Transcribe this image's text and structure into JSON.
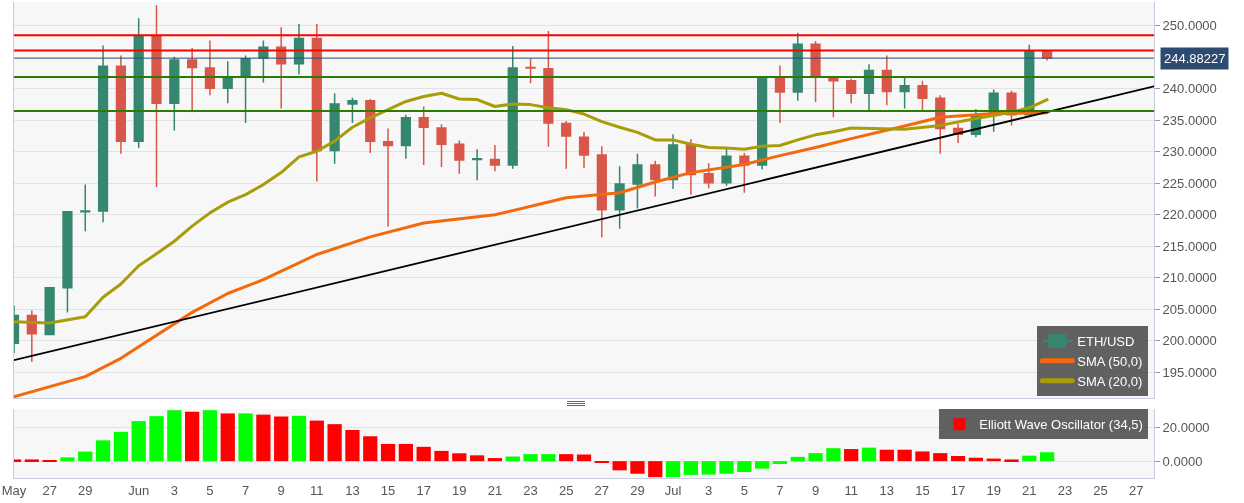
{
  "chart_data": [
    {
      "type": "candlestick",
      "tick_labels": "y",
      "grid": "y",
      "legend": "bottom right",
      "x": [
        "--05-25",
        "--05-26",
        "--05-27",
        "--05-28",
        "--05-29",
        "--05-30",
        "--05-31",
        "--06-01",
        "--06-02",
        "--06-03",
        "--06-04",
        "--06-05",
        "--06-06",
        "--06-07",
        "--06-08",
        "--06-09",
        "--06-10",
        "--06-11",
        "--06-12",
        "--06-13",
        "--06-14",
        "--06-15",
        "--06-16",
        "--06-17",
        "--06-18",
        "--06-19",
        "--06-20",
        "--06-21",
        "--06-22",
        "--06-23",
        "--06-24",
        "--06-25",
        "--06-26",
        "--06-27",
        "--06-28",
        "--06-29",
        "--06-30",
        "--07-01",
        "--07-02",
        "--07-03",
        "--07-04",
        "--07-05",
        "--07-06",
        "--07-07",
        "--07-08",
        "--07-09",
        "--07-10",
        "--07-11",
        "--07-12",
        "--07-13",
        "--07-14",
        "--07-15",
        "--07-16",
        "--07-17",
        "--07-18",
        "--07-19",
        "--07-20",
        "--07-21",
        "--07-22"
      ],
      "xlim": [
        "--05-25",
        "--07-28"
      ],
      "ylim": [
        190.9,
        253.8
      ],
      "yticks": [
        {
          "value": 195,
          "label": "195.0000"
        },
        {
          "value": 200,
          "label": "200.0000"
        },
        {
          "value": 205,
          "label": "205.0000"
        },
        {
          "value": 210,
          "label": "210.0000"
        },
        {
          "value": 215,
          "label": "215.0000"
        },
        {
          "value": 220,
          "label": "220.0000"
        },
        {
          "value": 225,
          "label": "225.0000"
        },
        {
          "value": 230,
          "label": "230.0000"
        },
        {
          "value": 235,
          "label": "235.0000"
        },
        {
          "value": 240,
          "label": "240.0000"
        },
        {
          "value": 250,
          "label": "250.0000"
        }
      ],
      "series": [
        {
          "name": "ETH/USD",
          "ohlc": [
            [
              199.6,
              205.6,
              198.0,
              204.0
            ],
            [
              204.0,
              204.8,
              196.6,
              201.1
            ],
            [
              201.0,
              208.4,
              201.0,
              208.4
            ],
            [
              208.4,
              220.5,
              204.5,
              220.5
            ],
            [
              220.5,
              224.8,
              217.4,
              220.6
            ],
            [
              220.6,
              246.9,
              218.8,
              243.6
            ],
            [
              243.6,
              245.3,
              229.7,
              231.7
            ],
            [
              231.7,
              251.2,
              230.6,
              248.4
            ],
            [
              248.4,
              253.3,
              224.4,
              237.7
            ],
            [
              237.7,
              245.1,
              233.4,
              244.6
            ],
            [
              244.6,
              246.5,
              236.3,
              243.4
            ],
            [
              243.3,
              247.7,
              239.0,
              240.1
            ],
            [
              240.1,
              244.4,
              237.7,
              241.9
            ],
            [
              241.9,
              245.3,
              234.6,
              244.8
            ],
            [
              244.9,
              247.7,
              241.0,
              246.6
            ],
            [
              246.6,
              249.8,
              236.9,
              244.0
            ],
            [
              244.0,
              250.3,
              242.3,
              248.0
            ],
            [
              248.0,
              250.3,
              225.3,
              230.2
            ],
            [
              230.2,
              239.3,
              228.1,
              237.6
            ],
            [
              237.6,
              238.6,
              234.6,
              238.1
            ],
            [
              238.1,
              238.4,
              229.8,
              231.7
            ],
            [
              231.6,
              233.7,
              218.1,
              231.0
            ],
            [
              231.0,
              235.9,
              228.9,
              235.4
            ],
            [
              235.4,
              237.2,
              227.9,
              233.9
            ],
            [
              233.8,
              234.4,
              227.6,
              231.2
            ],
            [
              231.2,
              231.8,
              226.5,
              228.7
            ],
            [
              228.8,
              230.4,
              225.5,
              228.9
            ],
            [
              228.8,
              231.1,
              226.9,
              227.9
            ],
            [
              227.9,
              246.8,
              227.3,
              243.3
            ],
            [
              243.4,
              244.8,
              240.9,
              243.3
            ],
            [
              243.2,
              249.2,
              230.8,
              234.6
            ],
            [
              234.5,
              234.9,
              227.3,
              232.5
            ],
            [
              232.3,
              233.2,
              227.4,
              229.5
            ],
            [
              229.5,
              230.9,
              216.4,
              220.8
            ],
            [
              220.8,
              227.7,
              217.8,
              224.9
            ],
            [
              224.9,
              229.7,
              221.0,
              227.9
            ],
            [
              227.9,
              228.6,
              222.9,
              225.6
            ],
            [
              225.6,
              232.8,
              224.1,
              231.1
            ],
            [
              231.1,
              232.0,
              223.2,
              226.4
            ],
            [
              226.5,
              228.2,
              224.2,
              225.1
            ],
            [
              225.1,
              230.6,
              224.6,
              229.3
            ],
            [
              229.3,
              229.8,
              223.5,
              227.9
            ],
            [
              227.9,
              241.9,
              227.2,
              241.9
            ],
            [
              241.9,
              243.7,
              234.6,
              239.5
            ],
            [
              239.5,
              248.9,
              238.1,
              247.1
            ],
            [
              247.1,
              247.6,
              237.9,
              242.1
            ],
            [
              241.9,
              241.9,
              235.5,
              241.3
            ],
            [
              241.3,
              241.6,
              237.7,
              239.3
            ],
            [
              239.3,
              243.9,
              236.5,
              242.9
            ],
            [
              242.9,
              245.3,
              237.4,
              239.6
            ],
            [
              239.6,
              241.8,
              236.9,
              240.5
            ],
            [
              240.5,
              241.3,
              236.6,
              238.5
            ],
            [
              238.5,
              239.0,
              229.7,
              233.7
            ],
            [
              233.7,
              234.5,
              231.4,
              232.8
            ],
            [
              232.8,
              236.8,
              232.3,
              235.9
            ],
            [
              235.9,
              239.9,
              233.2,
              239.3
            ],
            [
              239.3,
              239.7,
              234.2,
              235.9
            ],
            [
              235.9,
              247.0,
              235.9,
              246.0
            ],
            [
              246.0,
              246.0,
              244.5,
              244.9
            ]
          ],
          "colors": [
            "#35876f",
            "#d9574a",
            "#35876f",
            "#35876f",
            "#35876f",
            "#35876f",
            "#d9574a",
            "#35876f",
            "#d9574a",
            "#35876f",
            "#d9574a",
            "#d9574a",
            "#35876f",
            "#35876f",
            "#35876f",
            "#d9574a",
            "#35876f",
            "#d9574a",
            "#35876f",
            "#35876f",
            "#d9574a",
            "#d9574a",
            "#35876f",
            "#d9574a",
            "#d9574a",
            "#d9574a",
            "#35876f",
            "#d9574a",
            "#35876f",
            "#d9574a",
            "#d9574a",
            "#d9574a",
            "#d9574a",
            "#d9574a",
            "#35876f",
            "#35876f",
            "#d9574a",
            "#35876f",
            "#d9574a",
            "#d9574a",
            "#35876f",
            "#d9574a",
            "#35876f",
            "#d9574a",
            "#35876f",
            "#d9574a",
            "#d9574a",
            "#d9574a",
            "#35876f",
            "#d9574a",
            "#35876f",
            "#d9574a",
            "#d9574a",
            "#d9574a",
            "#35876f",
            "#35876f",
            "#d9574a",
            "#35876f",
            "#d9574a"
          ]
        },
        {
          "name": "SMA (50,0)",
          "type": "line",
          "color": "#f26a0c",
          "x": [
            "--05-25",
            "--05-29",
            "--05-31",
            "--06-04",
            "--06-06",
            "--06-08",
            "--06-11",
            "--06-14",
            "--06-17",
            "--06-21",
            "--06-25",
            "--06-28",
            "--06-30",
            "--07-02",
            "--07-05",
            "--07-07",
            "--07-09",
            "--07-11",
            "--07-14",
            "--07-16",
            "--07-19",
            "--07-22"
          ],
          "values": [
            191.1,
            194.3,
            197.2,
            204.5,
            207.5,
            209.7,
            213.7,
            216.5,
            218.7,
            220.0,
            222.7,
            223.5,
            225.2,
            226.7,
            228.0,
            229.4,
            230.7,
            232.1,
            234.1,
            235.5,
            236.1,
            236.2
          ]
        },
        {
          "name": "SMA (20,0)",
          "type": "line",
          "color": "#a89c0a",
          "x": [
            "--05-25",
            "--05-27",
            "--05-29",
            "--05-30",
            "--05-31",
            "--06-01",
            "--06-02",
            "--06-03",
            "--06-04",
            "--06-05",
            "--06-06",
            "--06-07",
            "--06-08",
            "--06-09",
            "--06-10",
            "--06-11",
            "--06-12",
            "--06-13",
            "--06-14",
            "--06-15",
            "--06-16",
            "--06-17",
            "--06-18",
            "--06-19",
            "--06-20",
            "--06-21",
            "--06-22",
            "--06-23",
            "--06-24",
            "--06-25",
            "--06-26",
            "--06-27",
            "--06-28",
            "--06-29",
            "--06-30",
            "--07-01",
            "--07-02",
            "--07-03",
            "--07-04",
            "--07-05",
            "--07-06",
            "--07-07",
            "--07-08",
            "--07-09",
            "--07-10",
            "--07-11",
            "--07-14",
            "--07-16",
            "--07-18",
            "--07-20",
            "--07-21",
            "--07-22"
          ],
          "values": [
            203.0,
            202.8,
            203.8,
            206.9,
            209.0,
            211.9,
            213.8,
            215.8,
            218.2,
            220.3,
            222.0,
            223.2,
            224.8,
            226.7,
            229.2,
            230.1,
            231.7,
            233.9,
            235.4,
            236.7,
            238.0,
            238.8,
            239.3,
            238.4,
            238.3,
            237.2,
            237.6,
            237.5,
            237.0,
            236.7,
            236.0,
            234.8,
            233.9,
            233.1,
            231.9,
            231.9,
            231.2,
            230.7,
            230.6,
            230.4,
            230.9,
            231.0,
            231.9,
            232.7,
            233.2,
            233.8,
            233.6,
            234.2,
            235.3,
            236.3,
            237.0,
            238.3
          ]
        },
        {
          "type": "line",
          "color": "#000000",
          "x": [
            "--05-25",
            "--07-28"
          ],
          "values": [
            196.9,
            240.4
          ]
        }
      ],
      "ref_lines": [
        {
          "axis": "y",
          "value": 248.5,
          "color": "#ff0000"
        },
        {
          "axis": "y",
          "value": 246.1,
          "color": "#ff0000"
        },
        {
          "axis": "y",
          "value": 244.88227,
          "label": "244.88227",
          "color": "#2d4a70"
        },
        {
          "axis": "y",
          "value": 241.9,
          "color": "#2a7d00"
        },
        {
          "axis": "y",
          "value": 236.5,
          "color": "#2a7d00"
        }
      ]
    },
    {
      "type": "bar",
      "grid": "y",
      "legend": "top right",
      "x": [
        "--05-25",
        "--05-26",
        "--05-27",
        "--05-28",
        "--05-29",
        "--05-30",
        "--05-31",
        "--06-01",
        "--06-02",
        "--06-03",
        "--06-04",
        "--06-05",
        "--06-06",
        "--06-07",
        "--06-08",
        "--06-09",
        "--06-10",
        "--06-11",
        "--06-12",
        "--06-13",
        "--06-14",
        "--06-15",
        "--06-16",
        "--06-17",
        "--06-18",
        "--06-19",
        "--06-20",
        "--06-21",
        "--06-22",
        "--06-23",
        "--06-24",
        "--06-25",
        "--06-26",
        "--06-27",
        "--06-28",
        "--06-29",
        "--06-30",
        "--07-01",
        "--07-02",
        "--07-03",
        "--07-04",
        "--07-05",
        "--07-06",
        "--07-07",
        "--07-08",
        "--07-09",
        "--07-10",
        "--07-11",
        "--07-12",
        "--07-13",
        "--07-14",
        "--07-15",
        "--07-16",
        "--07-17",
        "--07-18",
        "--07-19",
        "--07-20",
        "--07-21",
        "--07-22"
      ],
      "xlim": [
        "--05-25",
        "--07-28"
      ],
      "xticks": [
        {
          "value": "--05-25",
          "label": "May"
        },
        {
          "value": "--05-27",
          "label": "27"
        },
        {
          "value": "--05-29",
          "label": "29"
        },
        {
          "value": "--06-01",
          "label": "Jun"
        },
        {
          "value": "--06-03",
          "label": "3"
        },
        {
          "value": "--06-05",
          "label": "5"
        },
        {
          "value": "--06-07",
          "label": "7"
        },
        {
          "value": "--06-09",
          "label": "9"
        },
        {
          "value": "--06-11",
          "label": "11"
        },
        {
          "value": "--06-13",
          "label": "13"
        },
        {
          "value": "--06-15",
          "label": "15"
        },
        {
          "value": "--06-17",
          "label": "17"
        },
        {
          "value": "--06-19",
          "label": "19"
        },
        {
          "value": "--06-21",
          "label": "21"
        },
        {
          "value": "--06-23",
          "label": "23"
        },
        {
          "value": "--06-25",
          "label": "25"
        },
        {
          "value": "--06-27",
          "label": "27"
        },
        {
          "value": "--06-29",
          "label": "29"
        },
        {
          "value": "--07-01",
          "label": "Jul"
        },
        {
          "value": "--07-03",
          "label": "3"
        },
        {
          "value": "--07-05",
          "label": "5"
        },
        {
          "value": "--07-07",
          "label": "7"
        },
        {
          "value": "--07-09",
          "label": "9"
        },
        {
          "value": "--07-11",
          "label": "11"
        },
        {
          "value": "--07-13",
          "label": "13"
        },
        {
          "value": "--07-15",
          "label": "15"
        },
        {
          "value": "--07-17",
          "label": "17"
        },
        {
          "value": "--07-19",
          "label": "19"
        },
        {
          "value": "--07-21",
          "label": "21"
        },
        {
          "value": "--07-23",
          "label": "23"
        },
        {
          "value": "--07-25",
          "label": "25"
        },
        {
          "value": "--07-27",
          "label": "27"
        }
      ],
      "ylim": [
        -9.9,
        30.6
      ],
      "yticks": [
        {
          "value": 0,
          "label": "0.0000"
        },
        {
          "value": 20,
          "label": "20.0000"
        }
      ],
      "series": [
        {
          "name": "Elliott Wave Oscillator (34,5)",
          "values": [
            1.0,
            1.0,
            0.6,
            2.2,
            5.6,
            12.2,
            17.2,
            23.5,
            26.4,
            29.9,
            29.0,
            29.9,
            28.0,
            28.0,
            27.3,
            26.2,
            26.6,
            23.8,
            21.7,
            18.3,
            14.6,
            10.1,
            10.1,
            8.4,
            6.0,
            4.6,
            3.4,
            1.8,
            2.7,
            4.1,
            4.1,
            4.1,
            3.9,
            -1.1,
            -5.4,
            -7.4,
            -9.4,
            -9.4,
            -8.1,
            -7.9,
            -7.4,
            -6.4,
            -4.4,
            -1.7,
            2.5,
            4.7,
            7.6,
            7.1,
            7.9,
            6.7,
            6.7,
            5.7,
            4.7,
            3.0,
            2.0,
            1.5,
            1.0,
            3.2,
            5.2
          ],
          "colors": [
            "#ff0000",
            "#ff0000",
            "#ff0000",
            "#00ff00",
            "#00ff00",
            "#00ff00",
            "#00ff00",
            "#00ff00",
            "#00ff00",
            "#00ff00",
            "#ff0000",
            "#00ff00",
            "#ff0000",
            "#00ff00",
            "#ff0000",
            "#ff0000",
            "#00ff00",
            "#ff0000",
            "#ff0000",
            "#ff0000",
            "#ff0000",
            "#ff0000",
            "#ff0000",
            "#ff0000",
            "#ff0000",
            "#ff0000",
            "#ff0000",
            "#ff0000",
            "#00ff00",
            "#00ff00",
            "#00ff00",
            "#ff0000",
            "#ff0000",
            "#ff0000",
            "#ff0000",
            "#ff0000",
            "#ff0000",
            "#00ff00",
            "#00ff00",
            "#00ff00",
            "#00ff00",
            "#00ff00",
            "#00ff00",
            "#00ff00",
            "#00ff00",
            "#00ff00",
            "#00ff00",
            "#ff0000",
            "#00ff00",
            "#ff0000",
            "#ff0000",
            "#ff0000",
            "#ff0000",
            "#ff0000",
            "#ff0000",
            "#ff0000",
            "#ff0000",
            "#00ff00",
            "#00ff00"
          ]
        }
      ]
    }
  ]
}
